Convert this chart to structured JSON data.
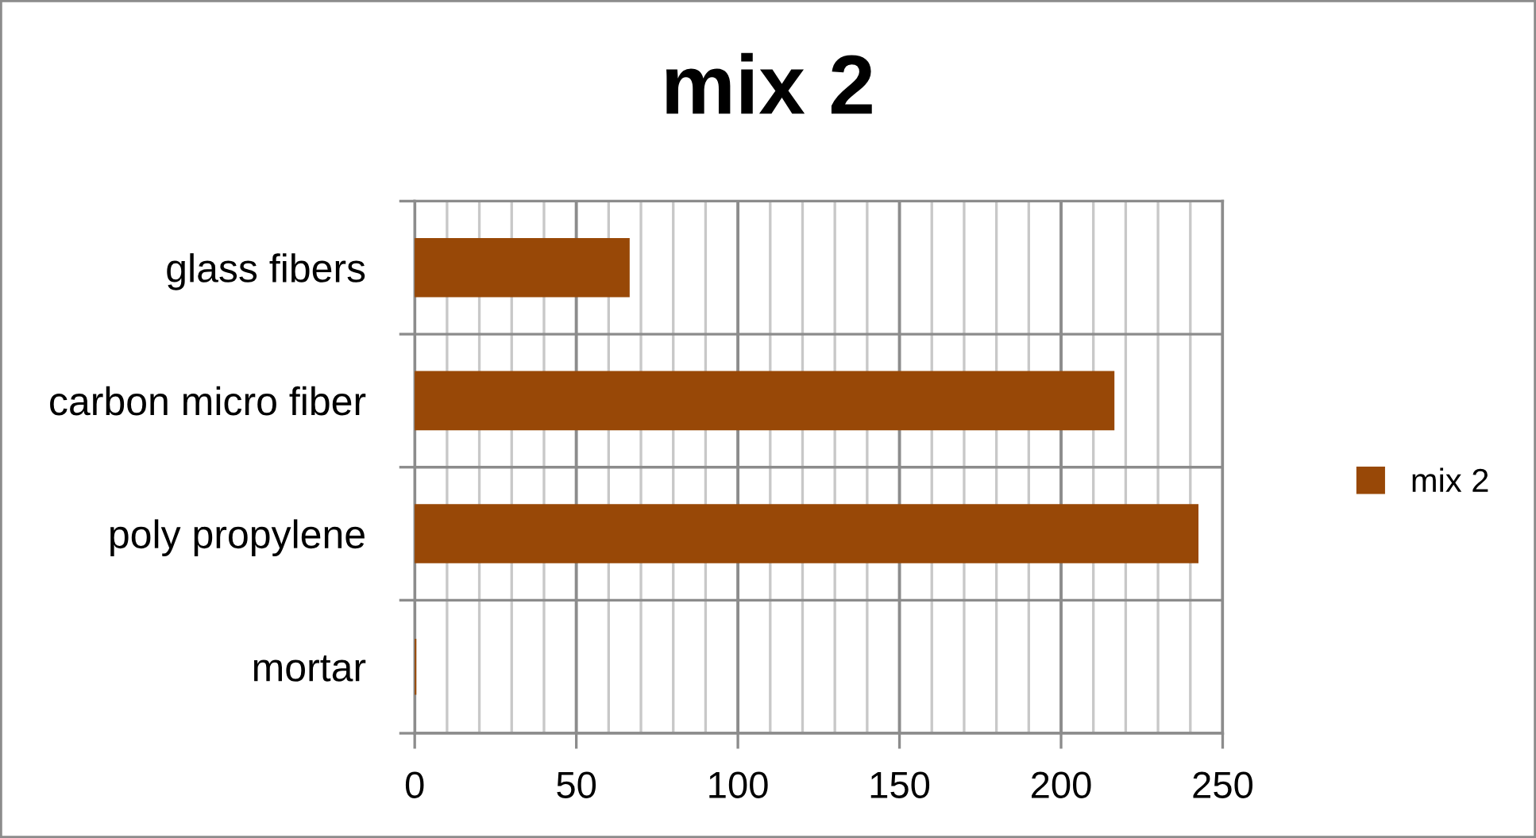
{
  "chart_data": {
    "type": "bar",
    "orientation": "horizontal",
    "title": "mix 2",
    "categories": [
      "glass fibers",
      "carbon micro fiber",
      "poly propylene",
      "mortar"
    ],
    "series": [
      {
        "name": "mix 2",
        "color": "#984807",
        "values": [
          66,
          216,
          242,
          0
        ]
      }
    ],
    "xlim": [
      0,
      250
    ],
    "xticks": [
      0,
      {
        "value": 10,
        "label": null
      },
      {
        "value": 20,
        "label": null
      },
      {
        "value": 30,
        "label": null
      },
      {
        "value": 40,
        "label": null
      },
      50,
      {
        "value": 60,
        "label": null
      },
      {
        "value": 70,
        "label": null
      },
      {
        "value": 80,
        "label": null
      },
      {
        "value": 90,
        "label": null
      },
      100,
      {
        "value": 110,
        "label": null
      },
      {
        "value": 120,
        "label": null
      },
      {
        "value": 130,
        "label": null
      },
      {
        "value": 140,
        "label": null
      },
      150,
      {
        "value": 160,
        "label": null
      },
      {
        "value": 170,
        "label": null
      },
      {
        "value": 180,
        "label": null
      },
      {
        "value": 190,
        "label": null
      },
      200,
      {
        "value": 210,
        "label": null
      },
      {
        "value": 220,
        "label": null
      },
      {
        "value": 230,
        "label": null
      },
      {
        "value": 240,
        "label": null
      },
      250
    ],
    "grid": true,
    "legend": "right"
  }
}
